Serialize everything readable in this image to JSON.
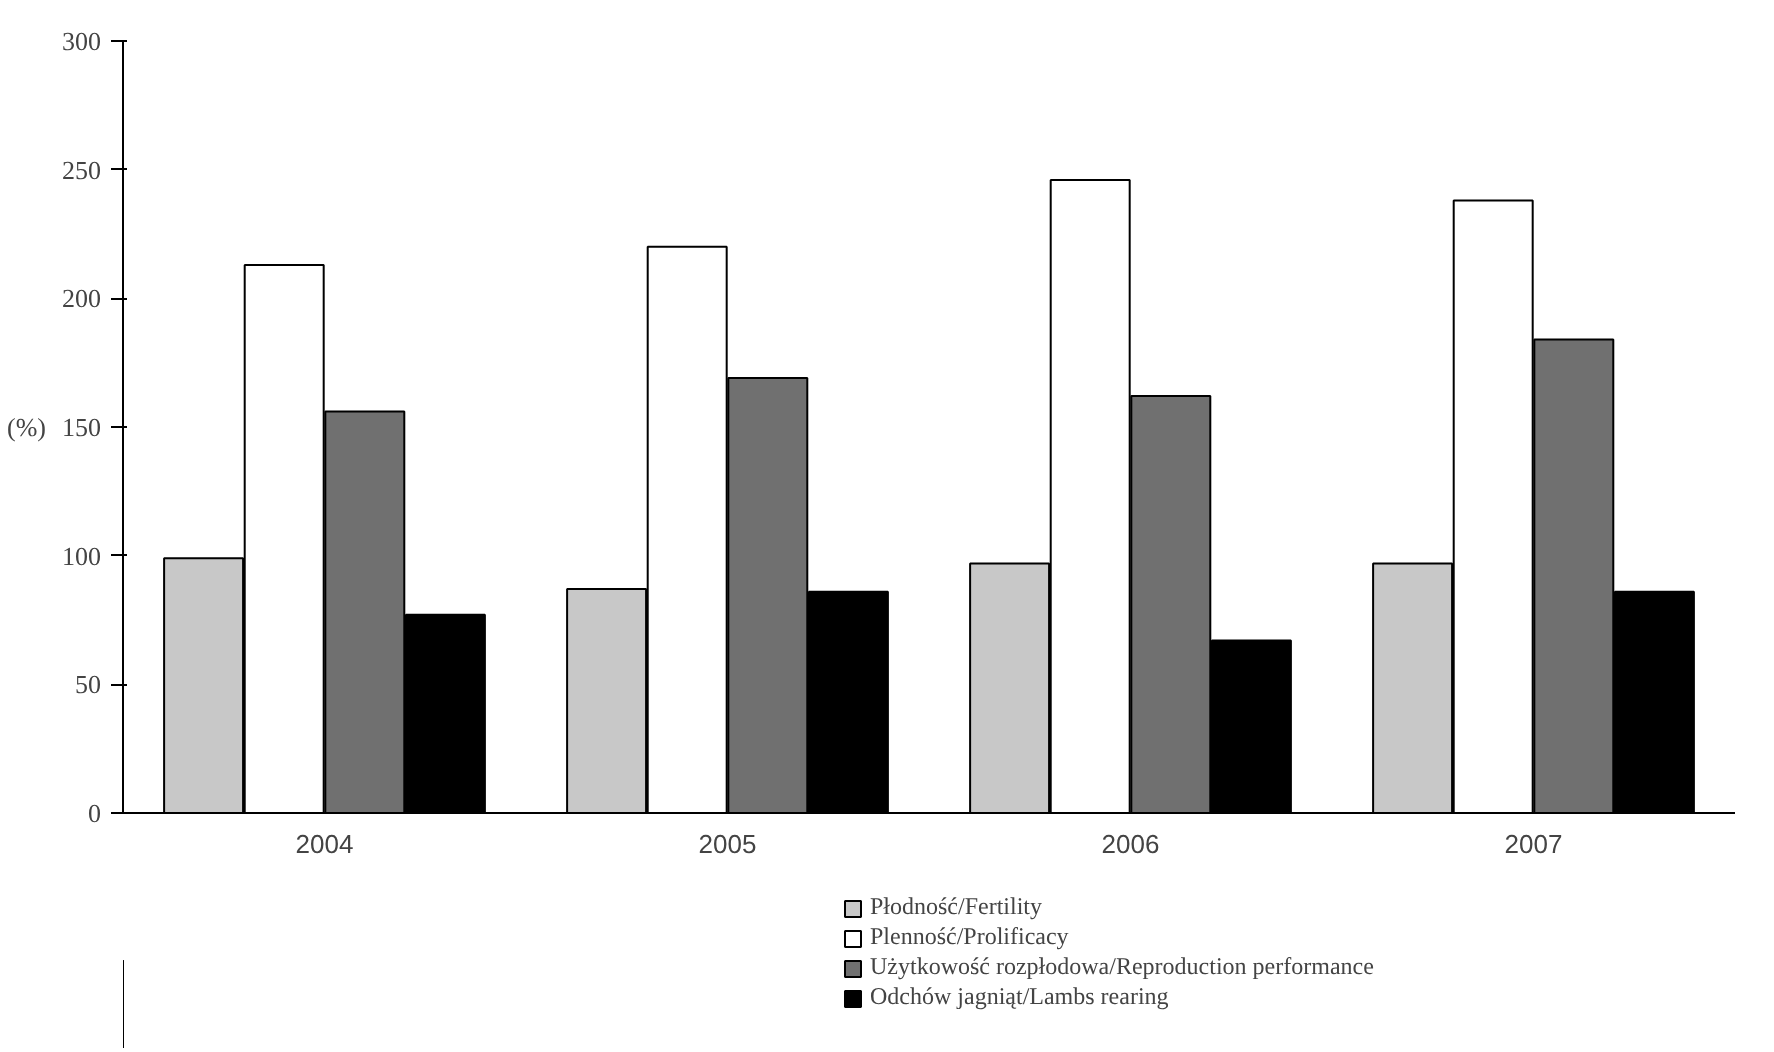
{
  "chart_data": {
    "type": "bar",
    "ylabel": "(%)",
    "categories": [
      "2004",
      "2005",
      "2006",
      "2007"
    ],
    "series": [
      {
        "name": "Płodność/Fertility",
        "color": "#c8c8c8",
        "values": [
          99,
          87,
          97,
          97
        ]
      },
      {
        "name": "Plenność/Prolificacy",
        "color": "#ffffff",
        "values": [
          213,
          220,
          246,
          238
        ]
      },
      {
        "name": "Użytkowość rozpłodowa/Reproduction performance",
        "color": "#707070",
        "values": [
          156,
          169,
          162,
          184
        ]
      },
      {
        "name": "Odchów jagniąt/Lambs rearing",
        "color": "#000000",
        "values": [
          77,
          86,
          67,
          86
        ]
      }
    ],
    "ylim": [
      0,
      300
    ],
    "yticks": [
      0,
      50,
      100,
      150,
      200,
      250,
      300
    ],
    "grid": false,
    "legend": "bottom"
  }
}
